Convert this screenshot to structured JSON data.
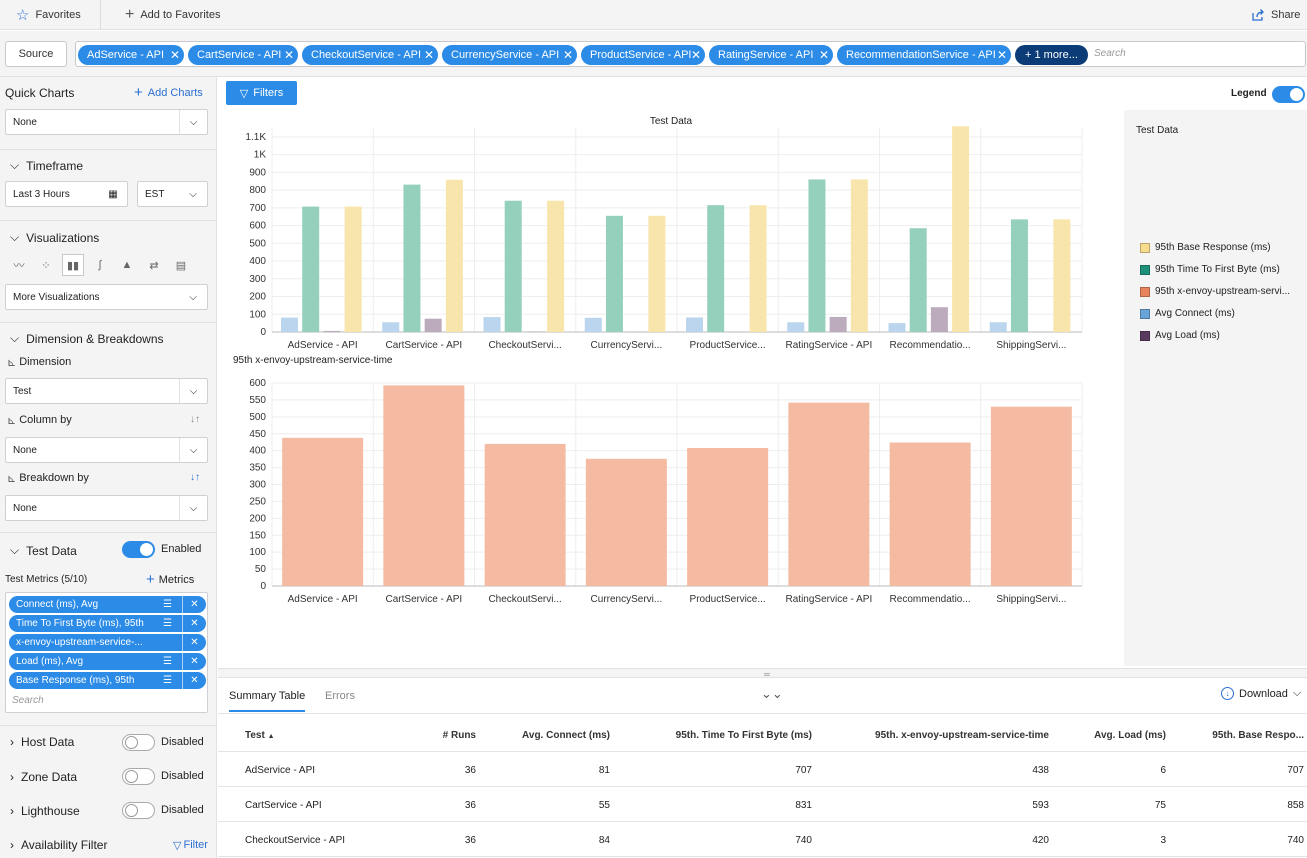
{
  "topbar": {
    "favorites": "Favorites",
    "add_favorites": "Add to Favorites",
    "share": "Share"
  },
  "source": {
    "button": "Source",
    "tags": [
      "AdService - API",
      "CartService - API",
      "CheckoutService - API",
      "CurrencyService - API",
      "ProductService - API",
      "RatingService - API",
      "RecommendationService - API"
    ],
    "more": "+ 1 more...",
    "search_placeholder": "Search"
  },
  "sidebar": {
    "quick_charts": "Quick Charts",
    "add_charts": "Add Charts",
    "quick_select": "None",
    "timeframe": "Timeframe",
    "time_range": "Last 3 Hours",
    "timezone": "EST",
    "visualizations": "Visualizations",
    "more_viz": "More Visualizations",
    "dimension_title": "Dimension & Breakdowns",
    "dimension": "Dimension",
    "dimension_value": "Test",
    "column_by": "Column by",
    "column_value": "None",
    "breakdown_by": "Breakdown by",
    "breakdown_value": "None",
    "test_data": "Test Data",
    "test_data_state": "Enabled",
    "test_metrics": "Test Metrics (5/10)",
    "metrics_btn": "Metrics",
    "metric_chips": [
      "Connect (ms), Avg",
      "Time To First Byte (ms), 95th",
      "x-envoy-upstream-service-...",
      "Load (ms), Avg",
      "Base Response (ms), 95th"
    ],
    "metric_search": "Search",
    "host_data": "Host Data",
    "host_state": "Disabled",
    "zone_data": "Zone Data",
    "zone_state": "Disabled",
    "lighthouse": "Lighthouse",
    "lighthouse_state": "Disabled",
    "availability": "Availability Filter",
    "filter_link": "Filter"
  },
  "main": {
    "filters_btn": "Filters",
    "legend_label": "Legend",
    "legend_title": "Test Data",
    "legend_items": [
      {
        "label": "95th Base Response (ms)",
        "color": "#f6dc8c"
      },
      {
        "label": "95th Time To First Byte (ms)",
        "color": "#1e8f78"
      },
      {
        "label": "95th x-envoy-upstream-servi...",
        "color": "#e8845e"
      },
      {
        "label": "Avg Connect (ms)",
        "color": "#6aa3d8"
      },
      {
        "label": "Avg Load (ms)",
        "color": "#5a3a5e"
      }
    ]
  },
  "chart_data": [
    {
      "type": "bar",
      "title": "Test Data",
      "categories": [
        "AdService - API",
        "CartService - API",
        "CheckoutServi...",
        "CurrencyServi...",
        "ProductService...",
        "RatingService - API",
        "Recommendatio...",
        "ShippingServi..."
      ],
      "yticks": [
        "0",
        "100",
        "200",
        "300",
        "400",
        "500",
        "600",
        "700",
        "800",
        "900",
        "1K",
        "1.1K"
      ],
      "ylim": [
        0,
        1150
      ],
      "series": [
        {
          "name": "Avg Connect (ms)",
          "color": "#b7d3ee",
          "values": [
            81,
            55,
            84,
            80,
            82,
            55,
            50,
            55
          ]
        },
        {
          "name": "95th Time To First Byte (ms)",
          "color": "#8fcdb9",
          "values": [
            707,
            831,
            740,
            655,
            715,
            860,
            585,
            635
          ]
        },
        {
          "name": "Avg Load (ms)",
          "color": "#b8a6b9",
          "values": [
            6,
            75,
            3,
            2,
            2,
            85,
            140,
            2
          ]
        },
        {
          "name": "95th Base Response (ms)",
          "color": "#f8e4a7",
          "values": [
            707,
            858,
            740,
            655,
            715,
            860,
            1160,
            635
          ]
        }
      ]
    },
    {
      "type": "bar",
      "title": "95th x-envoy-upstream-service-time",
      "categories": [
        "AdService - API",
        "CartService - API",
        "CheckoutServi...",
        "CurrencyServi...",
        "ProductService...",
        "RatingService - API",
        "Recommendatio...",
        "ShippingServi..."
      ],
      "yticks": [
        "0",
        "50",
        "100",
        "150",
        "200",
        "250",
        "300",
        "350",
        "400",
        "450",
        "500",
        "550",
        "600"
      ],
      "ylim": [
        0,
        600
      ],
      "series": [
        {
          "name": "95th x-envoy-upstream-service-time",
          "color": "#f3b79d",
          "values": [
            438,
            593,
            420,
            376,
            408,
            542,
            424,
            530
          ]
        }
      ]
    }
  ],
  "table": {
    "tabs": [
      "Summary Table",
      "Errors"
    ],
    "download": "Download",
    "headers": [
      "Test",
      "# Runs",
      "Avg. Connect (ms)",
      "95th. Time To First Byte (ms)",
      "95th. x-envoy-upstream-service-time",
      "Avg. Load (ms)",
      "95th. Base Respo..."
    ],
    "rows": [
      [
        "AdService - API",
        "36",
        "81",
        "707",
        "438",
        "6",
        "707"
      ],
      [
        "CartService - API",
        "36",
        "55",
        "831",
        "593",
        "75",
        "858"
      ],
      [
        "CheckoutService - API",
        "36",
        "84",
        "740",
        "420",
        "3",
        "740"
      ]
    ]
  }
}
